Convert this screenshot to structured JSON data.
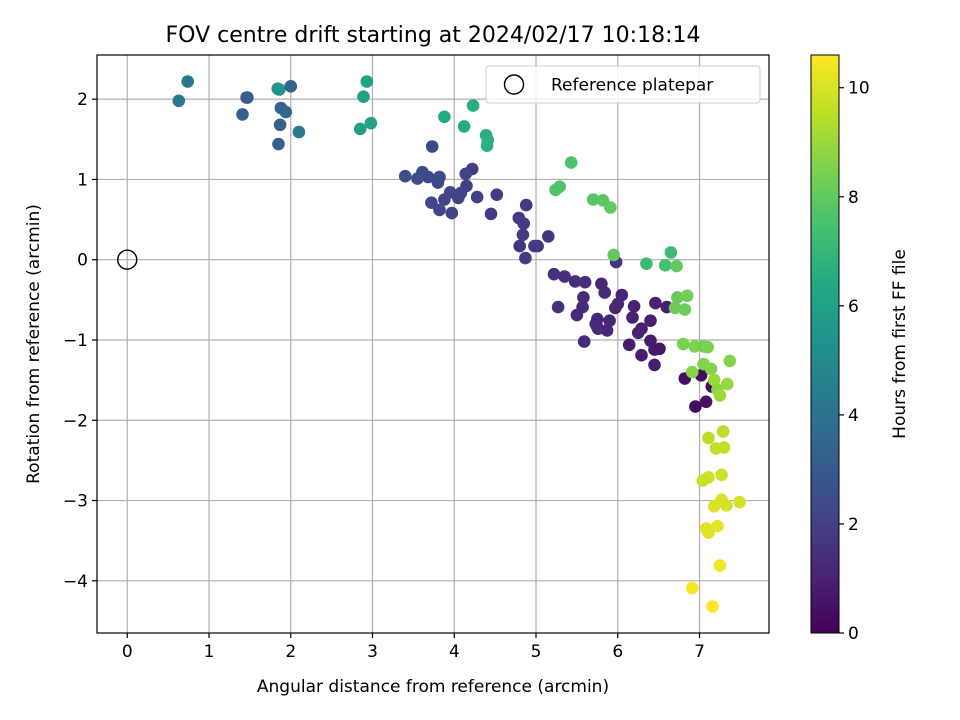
{
  "chart_data": {
    "type": "scatter",
    "title": "FOV centre drift starting at 2024/02/17 10:18:14",
    "xlabel": "Angular distance from reference (arcmin)",
    "ylabel": "Rotation from reference (arcmin)",
    "xlim": [
      -0.37,
      7.85
    ],
    "ylim": [
      -4.65,
      2.55
    ],
    "xticks": [
      0,
      1,
      2,
      3,
      4,
      5,
      6,
      7
    ],
    "yticks": [
      2,
      1,
      0,
      -1,
      -2,
      -3,
      -4
    ],
    "grid": true,
    "legend": {
      "position": "top-right",
      "entries": [
        "Reference platepar"
      ]
    },
    "reference_point": {
      "x": 0,
      "y": 0
    },
    "colorbar": {
      "label": "Hours from first FF file",
      "colormap": "viridis",
      "range": [
        0,
        10.6
      ],
      "ticks": [
        0,
        2,
        4,
        6,
        8,
        10
      ]
    },
    "series": [
      {
        "points": [
          [
            6.95,
            -1.83
          ],
          [
            7.08,
            -1.77
          ],
          [
            7.15,
            -1.58
          ],
          [
            7.02,
            -1.44
          ],
          [
            6.82,
            -1.48
          ],
          [
            6.45,
            -1.31
          ],
          [
            6.45,
            -1.12
          ],
          [
            6.4,
            -1.01
          ],
          [
            6.51,
            -1.11
          ],
          [
            6.29,
            -1.19
          ],
          [
            6.14,
            -1.06
          ],
          [
            6.6,
            -0.59
          ],
          [
            6.4,
            -0.76
          ],
          [
            6.29,
            -0.86
          ],
          [
            6.46,
            -0.54
          ],
          [
            6.2,
            -0.58
          ],
          [
            6.25,
            -0.91
          ],
          [
            6.18,
            -0.72
          ],
          [
            6.05,
            -0.44
          ],
          [
            5.97,
            -0.6
          ],
          [
            5.9,
            -0.76
          ],
          [
            5.8,
            -0.3
          ],
          [
            5.73,
            -0.8
          ],
          [
            5.76,
            -0.86
          ],
          [
            5.57,
            -0.59
          ],
          [
            5.58,
            -0.47
          ],
          [
            5.5,
            -0.69
          ],
          [
            5.6,
            -0.28
          ],
          [
            5.48,
            -0.27
          ],
          [
            5.35,
            -0.21
          ],
          [
            5.22,
            -0.18
          ],
          [
            5.59,
            -1.02
          ],
          [
            5.27,
            -0.59
          ],
          [
            5.15,
            0.29
          ],
          [
            5.02,
            0.17
          ],
          [
            4.98,
            0.17
          ],
          [
            4.8,
            0.17
          ],
          [
            4.87,
            0.02
          ],
          [
            4.84,
            0.31
          ],
          [
            4.79,
            0.52
          ],
          [
            4.85,
            0.45
          ],
          [
            4.88,
            0.68
          ],
          [
            4.45,
            0.57
          ],
          [
            4.52,
            0.81
          ],
          [
            4.28,
            0.78
          ],
          [
            4.22,
            1.13
          ],
          [
            4.14,
            1.07
          ],
          [
            4.15,
            0.92
          ],
          [
            4.08,
            0.83
          ],
          [
            4.05,
            0.77
          ],
          [
            3.95,
            0.84
          ],
          [
            3.88,
            0.75
          ],
          [
            3.82,
            0.62
          ],
          [
            3.97,
            0.58
          ],
          [
            3.72,
            0.71
          ],
          [
            3.8,
            0.96
          ],
          [
            3.82,
            1.03
          ],
          [
            3.68,
            1.03
          ],
          [
            3.61,
            1.09
          ],
          [
            3.73,
            1.41
          ],
          [
            3.55,
            1.01
          ],
          [
            3.4,
            1.04
          ],
          [
            5.98,
            -0.03
          ],
          [
            5.84,
            -0.41
          ],
          [
            6.0,
            -0.55
          ],
          [
            5.75,
            -0.74
          ],
          [
            5.87,
            -0.88
          ],
          [
            5.75,
            -0.84
          ],
          [
            2.85,
            1.63
          ],
          [
            2.98,
            1.7
          ],
          [
            2.89,
            2.03
          ],
          [
            2.93,
            2.22
          ],
          [
            1.84,
            2.13
          ],
          [
            1.86,
            2.12
          ],
          [
            1.88,
            1.89
          ],
          [
            1.94,
            1.84
          ],
          [
            1.87,
            1.68
          ],
          [
            1.85,
            1.44
          ],
          [
            2.1,
            1.59
          ],
          [
            2.0,
            2.16
          ],
          [
            1.46,
            2.02
          ],
          [
            1.47,
            2.02
          ],
          [
            1.41,
            1.81
          ],
          [
            0.74,
            2.22
          ],
          [
            0.63,
            1.98
          ],
          [
            3.88,
            1.78
          ],
          [
            4.12,
            1.66
          ],
          [
            4.23,
            1.92
          ],
          [
            4.39,
            1.55
          ],
          [
            4.41,
            1.49
          ],
          [
            4.4,
            1.42
          ],
          [
            5.43,
            1.21
          ],
          [
            5.24,
            0.87
          ],
          [
            5.29,
            0.91
          ],
          [
            5.7,
            0.75
          ],
          [
            5.82,
            0.74
          ],
          [
            5.91,
            0.65
          ],
          [
            5.95,
            0.06
          ],
          [
            6.35,
            -0.05
          ],
          [
            6.58,
            -0.07
          ],
          [
            6.65,
            0.09
          ],
          [
            6.72,
            -0.08
          ],
          [
            6.73,
            -0.47
          ],
          [
            6.7,
            -0.6
          ],
          [
            6.82,
            -0.62
          ],
          [
            6.85,
            -0.45
          ],
          [
            6.8,
            -1.05
          ],
          [
            6.94,
            -1.08
          ],
          [
            7.05,
            -1.08
          ],
          [
            7.1,
            -1.09
          ],
          [
            7.05,
            -1.3
          ],
          [
            7.14,
            -1.36
          ],
          [
            6.91,
            -1.4
          ],
          [
            7.18,
            -1.5
          ],
          [
            7.22,
            -1.62
          ],
          [
            7.25,
            -1.69
          ],
          [
            7.34,
            -1.55
          ],
          [
            7.37,
            -1.26
          ],
          [
            7.11,
            -2.22
          ],
          [
            7.29,
            -2.14
          ],
          [
            7.2,
            -2.35
          ],
          [
            7.3,
            -2.34
          ],
          [
            7.27,
            -2.68
          ],
          [
            7.11,
            -2.71
          ],
          [
            7.04,
            -2.75
          ],
          [
            7.18,
            -3.07
          ],
          [
            7.27,
            -2.99
          ],
          [
            7.33,
            -3.06
          ],
          [
            7.49,
            -3.02
          ],
          [
            7.08,
            -3.35
          ],
          [
            7.11,
            -3.4
          ],
          [
            7.22,
            -3.32
          ],
          [
            7.25,
            -3.81
          ],
          [
            6.91,
            -4.09
          ],
          [
            7.16,
            -4.32
          ]
        ],
        "hours": [
          0.4,
          0.5,
          0.3,
          0.3,
          0.4,
          0.8,
          0.8,
          0.8,
          0.7,
          0.8,
          0.8,
          0.9,
          0.9,
          0.9,
          1.0,
          1.0,
          1.0,
          1.0,
          1.1,
          1.1,
          1.2,
          1.2,
          1.2,
          1.2,
          1.3,
          1.3,
          1.3,
          1.4,
          1.4,
          1.4,
          1.5,
          1.3,
          1.5,
          1.7,
          1.7,
          1.8,
          1.7,
          1.8,
          1.9,
          1.8,
          1.8,
          1.9,
          1.9,
          2.0,
          2.0,
          2.0,
          2.1,
          2.0,
          2.1,
          2.1,
          2.2,
          2.2,
          2.2,
          2.1,
          2.2,
          2.3,
          2.4,
          2.3,
          2.4,
          2.4,
          2.5,
          2.5,
          1.6,
          1.3,
          1.2,
          1.1,
          1.2,
          1.3,
          5.9,
          6.1,
          6.0,
          6.2,
          5.7,
          5.5,
          3.4,
          3.5,
          3.3,
          3.2,
          4.4,
          3.3,
          3.0,
          3.1,
          3.2,
          4.2,
          4.3,
          6.4,
          6.5,
          6.6,
          6.6,
          6.7,
          6.7,
          7.6,
          7.7,
          7.7,
          7.8,
          7.9,
          8.0,
          8.0,
          7.2,
          7.4,
          7.3,
          8.0,
          8.1,
          8.2,
          8.2,
          8.3,
          8.4,
          8.5,
          8.3,
          8.5,
          8.6,
          8.6,
          8.7,
          9.0,
          8.8,
          9.0,
          8.9,
          8.6,
          9.5,
          9.5,
          9.6,
          9.6,
          9.8,
          9.8,
          9.7,
          10.0,
          10.0,
          9.9,
          9.9,
          10.1,
          10.1,
          10.2,
          10.4,
          10.5,
          10.6
        ]
      }
    ]
  }
}
